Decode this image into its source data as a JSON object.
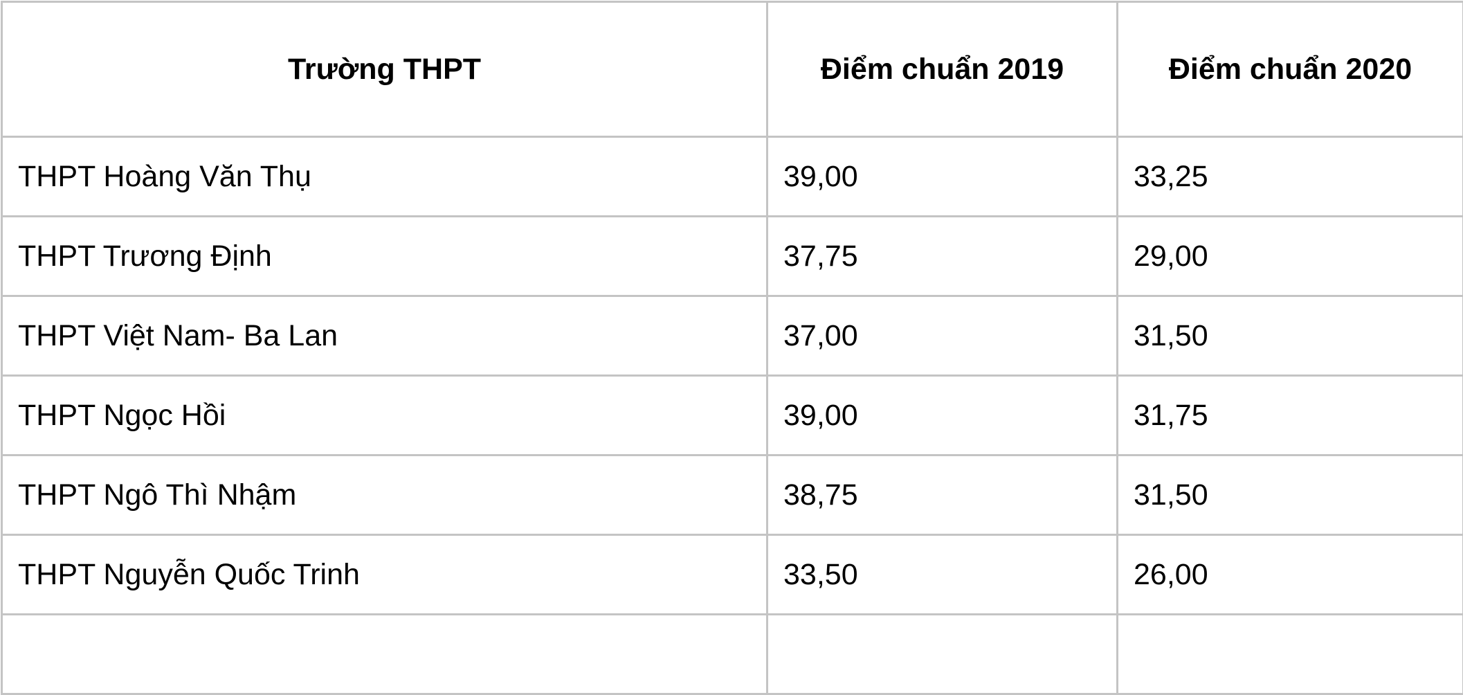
{
  "table": {
    "headers": [
      "Trường THPT",
      "Điểm chuẩn 2019",
      "Điểm chuẩn 2020"
    ],
    "rows": [
      [
        "THPT Hoàng Văn Thụ",
        "39,00",
        "33,25"
      ],
      [
        "THPT Trương Định",
        "37,75",
        "29,00"
      ],
      [
        "THPT Việt Nam- Ba Lan",
        "37,00",
        "31,50"
      ],
      [
        "THPT Ngọc Hồi",
        "39,00",
        "31,75"
      ],
      [
        "THPT Ngô Thì Nhậm",
        "38,75",
        "31,50"
      ],
      [
        "THPT Nguyễn Quốc Trinh",
        "33,50",
        "26,00"
      ]
    ]
  }
}
